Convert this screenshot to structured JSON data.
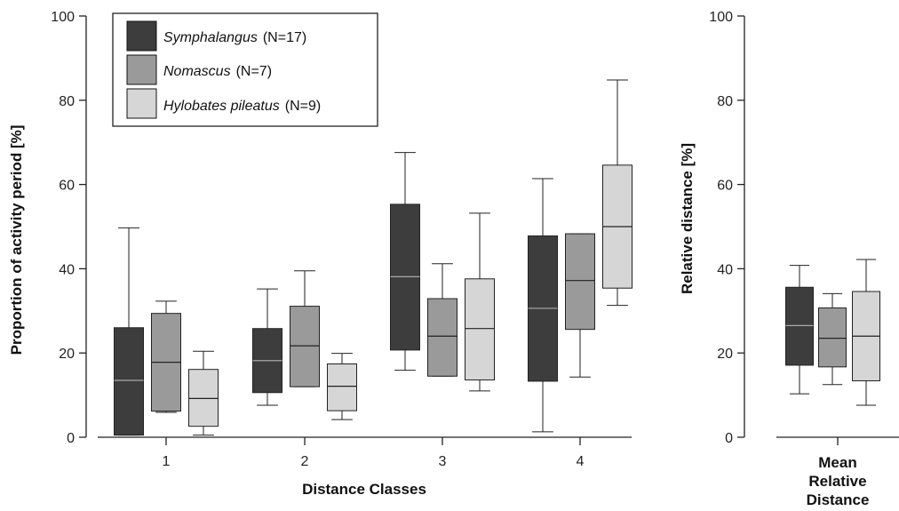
{
  "chart_data": [
    {
      "type": "box",
      "ylabel": "Proportion of activity period [%]",
      "xlabel": "Distance Classes",
      "ylim": [
        0,
        100
      ],
      "yticks": [
        0,
        20,
        40,
        60,
        80,
        100
      ],
      "categories": [
        "1",
        "2",
        "3",
        "4"
      ],
      "series": [
        {
          "name_italic": "Symphalangus",
          "name_suffix": "(N=17)",
          "color": "#3d3d3d",
          "boxes": [
            {
              "min": 0.5,
              "q1": 0.5,
              "median": 13.5,
              "q3": 26,
              "max": 49.7
            },
            {
              "min": 7.6,
              "q1": 10.6,
              "median": 18.2,
              "q3": 25.8,
              "max": 35.2
            },
            {
              "min": 15.9,
              "q1": 20.7,
              "median": 38.1,
              "q3": 55.3,
              "max": 67.6
            },
            {
              "min": 1.3,
              "q1": 13.3,
              "median": 30.6,
              "q3": 47.8,
              "max": 61.4
            }
          ]
        },
        {
          "name_italic": "Nomascus",
          "name_suffix": "(N=7)",
          "color": "#9a9a9a",
          "boxes": [
            {
              "min": 5.9,
              "q1": 6.2,
              "median": 17.8,
              "q3": 29.4,
              "max": 32.3
            },
            {
              "min": 12.0,
              "q1": 12.0,
              "median": 21.7,
              "q3": 31.1,
              "max": 39.5
            },
            {
              "min": 14.5,
              "q1": 14.5,
              "median": 24.0,
              "q3": 32.9,
              "max": 41.2
            },
            {
              "min": 14.3,
              "q1": 25.6,
              "median": 37.2,
              "q3": 48.3,
              "max": 48.3
            }
          ]
        },
        {
          "name_italic": "Hylobates pileatus",
          "name_suffix": "(N=9)",
          "color": "#d6d6d6",
          "boxes": [
            {
              "min": 0.5,
              "q1": 2.6,
              "median": 9.2,
              "q3": 16.1,
              "max": 20.4
            },
            {
              "min": 4.2,
              "q1": 6.3,
              "median": 12.1,
              "q3": 17.4,
              "max": 19.9
            },
            {
              "min": 11.0,
              "q1": 13.6,
              "median": 25.8,
              "q3": 37.6,
              "max": 53.2
            },
            {
              "min": 31.3,
              "q1": 35.4,
              "median": 50.0,
              "q3": 64.6,
              "max": 84.8
            }
          ]
        }
      ]
    },
    {
      "type": "box",
      "ylabel": "Relative distance [%]",
      "xlabel_lines": [
        "Mean",
        "Relative",
        "Distance"
      ],
      "ylim": [
        0,
        100
      ],
      "yticks": [
        0,
        20,
        40,
        60,
        80,
        100
      ],
      "series": [
        {
          "color": "#3d3d3d",
          "box": {
            "min": 10.3,
            "q1": 17.1,
            "median": 26.5,
            "q3": 35.6,
            "max": 40.8
          }
        },
        {
          "color": "#9a9a9a",
          "box": {
            "min": 12.5,
            "q1": 16.7,
            "median": 23.5,
            "q3": 30.7,
            "max": 34.1
          }
        },
        {
          "color": "#d6d6d6",
          "box": {
            "min": 7.6,
            "q1": 13.4,
            "median": 24.0,
            "q3": 34.6,
            "max": 42.2
          }
        }
      ]
    }
  ]
}
